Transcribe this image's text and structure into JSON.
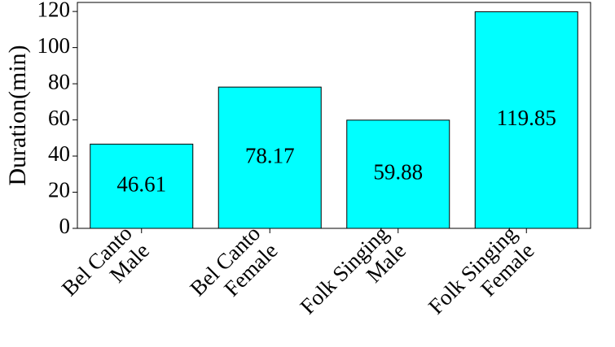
{
  "chart_data": {
    "type": "bar",
    "categories": [
      "Bel Canto\nMale",
      "Bel Canto\nFemale",
      "Folk Singing\nMale",
      "Folk Singing\nFemale"
    ],
    "values": [
      46.61,
      78.17,
      59.88,
      119.85
    ],
    "color": "#00ffff",
    "y_label": "Duration(min)",
    "ylim": [
      0,
      125
    ],
    "yticks": [
      0,
      20,
      40,
      60,
      80,
      100,
      120
    ],
    "grid": false
  }
}
